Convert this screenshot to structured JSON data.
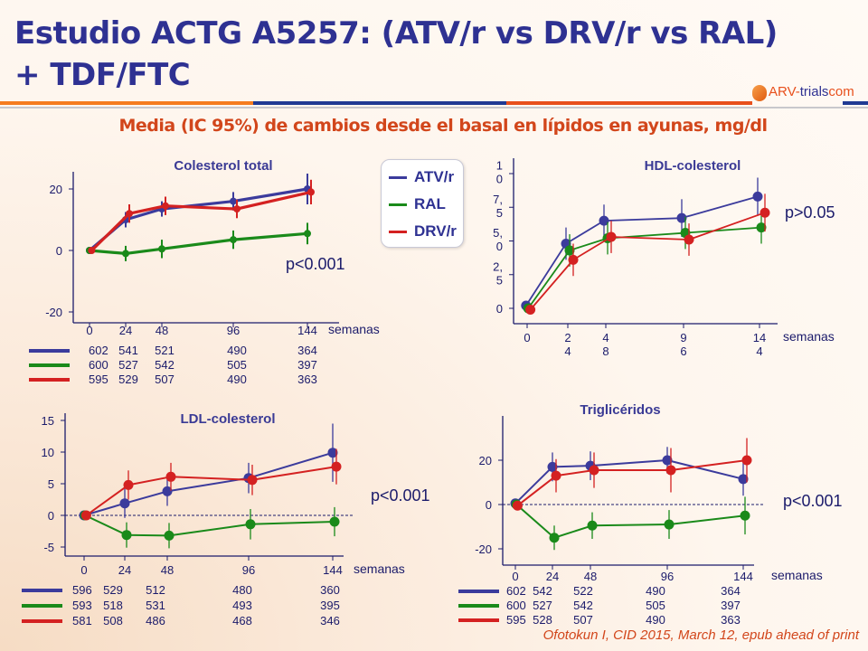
{
  "slide": {
    "title_line1": "Estudio ACTG A5257: (ATV/r vs DRV/r vs RAL)",
    "title_line2": "+ TDF/FTC",
    "subtitle": "Media (IC 95%) de cambios desde el basal en lípidos en ayunas, mg/dl",
    "logo": {
      "part1": "ARV-",
      "part2": "trials",
      "part3": "com"
    },
    "footer": "Ofotokun I, CID 2015, March 12, epub ahead of print",
    "colors": {
      "title": "#2e3192",
      "accent": "#d2461b",
      "atv": "#3b3b9c",
      "ral": "#1a8a1a",
      "drv": "#d42121"
    }
  },
  "legend": [
    {
      "label": "ATV/r",
      "color": "#3b3b9c"
    },
    {
      "label": "RAL",
      "color": "#1a8a1a"
    },
    {
      "label": "DRV/r",
      "color": "#d42121"
    }
  ],
  "chart_data": [
    {
      "type": "line",
      "title": "Colesterol total",
      "xlabel": "semanas",
      "x": [
        0,
        24,
        48,
        96,
        144
      ],
      "x_tick_labels": [
        "0",
        "24",
        "48",
        "96",
        "144"
      ],
      "y_ticks": [
        20,
        0,
        -20
      ],
      "y_tick_labels": [
        "20",
        "0",
        "-20"
      ],
      "ylim": [
        -20,
        25
      ],
      "zero_line": false,
      "annotation": "p<0.001",
      "series": [
        {
          "name": "ATV/r",
          "values": [
            0,
            10,
            13.5,
            16,
            20
          ],
          "ci_half": [
            0,
            2.5,
            2.5,
            3,
            5
          ]
        },
        {
          "name": "RAL",
          "values": [
            0,
            -1,
            0.5,
            3.5,
            5.5
          ],
          "ci_half": [
            0,
            2.5,
            3,
            3,
            3.5
          ]
        },
        {
          "name": "DRV/r",
          "values": [
            0,
            12,
            14.5,
            13.5,
            19
          ],
          "ci_half": [
            0,
            3,
            3,
            3,
            4
          ]
        }
      ],
      "n_at_risk": [
        {
          "name": "ATV/r",
          "values": [
            "602",
            "541",
            "521",
            "490",
            "364"
          ]
        },
        {
          "name": "RAL",
          "values": [
            "600",
            "527",
            "542",
            "505",
            "397"
          ]
        },
        {
          "name": "DRV/r",
          "values": [
            "595",
            "529",
            "507",
            "490",
            "363"
          ]
        }
      ]
    },
    {
      "type": "line",
      "title": "HDL-colesterol",
      "xlabel": "semanas",
      "x": [
        0,
        24,
        48,
        96,
        144
      ],
      "x_tick_labels": [
        [
          "0"
        ],
        [
          "2",
          "4"
        ],
        [
          "4",
          "8"
        ],
        [
          "9",
          "6"
        ],
        [
          "14",
          "4"
        ]
      ],
      "y_ticks": [
        10,
        7.5,
        5,
        2.5,
        0
      ],
      "y_tick_labels": [
        [
          "1",
          "0"
        ],
        [
          "7,",
          "5"
        ],
        [
          "5,",
          "0"
        ],
        [
          "2,",
          "5"
        ],
        [
          "0"
        ]
      ],
      "ylim": [
        -1.2,
        11
      ],
      "zero_line": false,
      "annotation": "p>0.05",
      "series": [
        {
          "name": "ATV/r",
          "values": [
            0.2,
            4.8,
            6.5,
            6.7,
            8.3
          ],
          "ci_half": [
            0,
            1.2,
            1.2,
            1.4,
            1.4
          ]
        },
        {
          "name": "RAL",
          "values": [
            0,
            4.3,
            5.2,
            5.6,
            6.0
          ],
          "ci_half": [
            0,
            1.2,
            1.2,
            1.2,
            1.2
          ]
        },
        {
          "name": "DRV/r",
          "values": [
            -0.1,
            3.6,
            5.3,
            5.1,
            7.1
          ],
          "ci_half": [
            0,
            1.2,
            1.2,
            1.2,
            1.4
          ]
        }
      ]
    },
    {
      "type": "line",
      "title": "LDL-colesterol",
      "xlabel": "semanas",
      "x": [
        0,
        24,
        48,
        96,
        144
      ],
      "x_tick_labels": [
        "0",
        "24",
        "48",
        "96",
        "144"
      ],
      "y_ticks": [
        15,
        10,
        5,
        0,
        -5
      ],
      "y_tick_labels": [
        "15",
        "10",
        "5",
        "0",
        "-5"
      ],
      "ylim": [
        -6.5,
        16
      ],
      "zero_line": true,
      "annotation": "p<0.001",
      "series": [
        {
          "name": "ATV/r",
          "values": [
            0,
            1.9,
            3.8,
            5.9,
            9.9
          ],
          "ci_half": [
            0,
            2.3,
            2.3,
            2.4,
            4.6
          ]
        },
        {
          "name": "RAL",
          "values": [
            0,
            -3.1,
            -3.2,
            -1.4,
            -1.0
          ],
          "ci_half": [
            0,
            2,
            2,
            2.4,
            2.3
          ]
        },
        {
          "name": "DRV/r",
          "values": [
            0,
            4.8,
            6.1,
            5.6,
            7.7
          ],
          "ci_half": [
            0,
            2.3,
            2.2,
            2.4,
            2.8
          ]
        }
      ],
      "n_at_risk": [
        {
          "name": "ATV/r",
          "values": [
            "596",
            "529",
            "512",
            "480",
            "360"
          ]
        },
        {
          "name": "RAL",
          "values": [
            "593",
            "518",
            "531",
            "493",
            "395"
          ]
        },
        {
          "name": "DRV/r",
          "values": [
            "581",
            "508",
            "486",
            "468",
            "346"
          ]
        }
      ]
    },
    {
      "type": "line",
      "title": "Triglicéridos",
      "xlabel": "semanas",
      "x": [
        0,
        24,
        48,
        96,
        144
      ],
      "x_tick_labels": [
        "0",
        "24",
        "48",
        "96",
        "144"
      ],
      "y_ticks": [
        20,
        0,
        -20
      ],
      "y_tick_labels": [
        "20",
        "0",
        "-20"
      ],
      "ylim": [
        -27,
        40
      ],
      "zero_line": true,
      "annotation": "p<0.001",
      "series": [
        {
          "name": "ATV/r",
          "values": [
            0.5,
            17,
            17.5,
            20,
            11.5
          ],
          "ci_half": [
            0,
            6.5,
            6.5,
            6,
            7.5
          ]
        },
        {
          "name": "RAL",
          "values": [
            0,
            -15,
            -9.5,
            -9,
            -5
          ],
          "ci_half": [
            0,
            5.5,
            6,
            6.5,
            8.5
          ]
        },
        {
          "name": "DRV/r",
          "values": [
            -0.5,
            13,
            15.5,
            15.5,
            20
          ],
          "ci_half": [
            0,
            7.5,
            8,
            10,
            10
          ]
        }
      ],
      "n_at_risk": [
        {
          "name": "ATV/r",
          "values": [
            "602",
            "542",
            "522",
            "490",
            "364"
          ]
        },
        {
          "name": "RAL",
          "values": [
            "600",
            "527",
            "542",
            "505",
            "397"
          ]
        },
        {
          "name": "DRV/r",
          "values": [
            "595",
            "528",
            "507",
            "490",
            "363"
          ]
        }
      ]
    }
  ]
}
